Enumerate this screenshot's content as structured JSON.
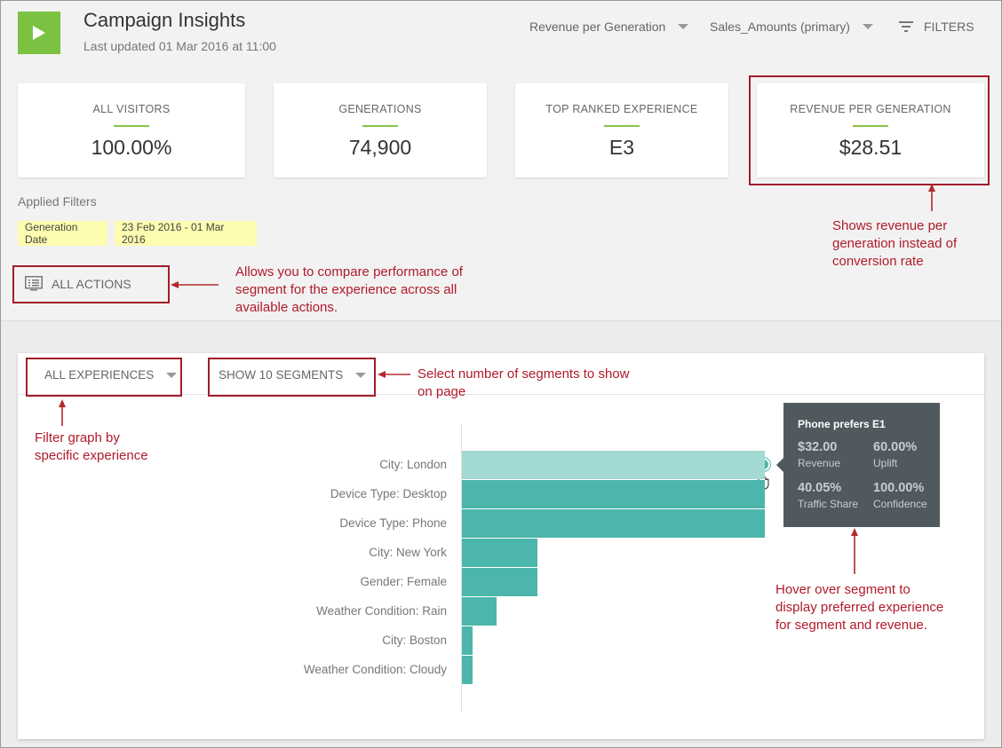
{
  "header": {
    "title": "Campaign Insights",
    "subtitle": "Last updated 01 Mar 2016 at 11:00",
    "metric_select": "Revenue per Generation",
    "goal_select": "Sales_Amounts (primary)",
    "filters_label": "FILTERS"
  },
  "kpis": [
    {
      "label": "ALL VISITORS",
      "value": "100.00%"
    },
    {
      "label": "GENERATIONS",
      "value": "74,900"
    },
    {
      "label": "TOP RANKED EXPERIENCE",
      "value": "E3"
    },
    {
      "label": "REVENUE PER GENERATION",
      "value": "$28.51"
    }
  ],
  "applied_filters": {
    "title": "Applied Filters",
    "chips": [
      "Generation Date",
      "23 Feb 2016 - 01 Mar 2016"
    ]
  },
  "all_actions_label": "ALL ACTIONS",
  "panel": {
    "experiences_dropdown": "ALL EXPERIENCES",
    "segments_dropdown": "SHOW 10 SEGMENTS"
  },
  "chart_data": {
    "type": "bar",
    "orientation": "horizontal",
    "categories": [
      "City: London",
      "Device Type: Desktop",
      "Device Type: Phone",
      "City: New York",
      "Gender: Female",
      "Weather Condition: Rain",
      "City: Boston",
      "Weather Condition: Cloudy"
    ],
    "values": [
      1.0,
      1.0,
      1.0,
      0.25,
      0.25,
      0.115,
      0.035,
      0.035
    ],
    "highlighted_index": 0,
    "colors": {
      "bar": "#4db6ac",
      "highlight": "#a3d9d3"
    }
  },
  "tooltip": {
    "title": "Phone prefers E1",
    "cells": [
      {
        "value": "$32.00",
        "label": "Revenue"
      },
      {
        "value": "60.00%",
        "label": "Uplift"
      },
      {
        "value": "40.05%",
        "label": "Traffic Share"
      },
      {
        "value": "100.00%",
        "label": "Confidence"
      }
    ]
  },
  "annotations": {
    "revenue": "Shows revenue per generation instead of conversion rate",
    "actions": "Allows you to compare performance of segment for the experience across all available actions.",
    "segments": "Select number of segments to show on page",
    "filter": "Filter graph by specific experience",
    "hover": "Hover over segment to display preferred experience for segment and revenue."
  },
  "colors": {
    "accent_green": "#7cc242",
    "annotation_red": "#a11d2b",
    "chip_yellow": "#fdfcb0"
  }
}
